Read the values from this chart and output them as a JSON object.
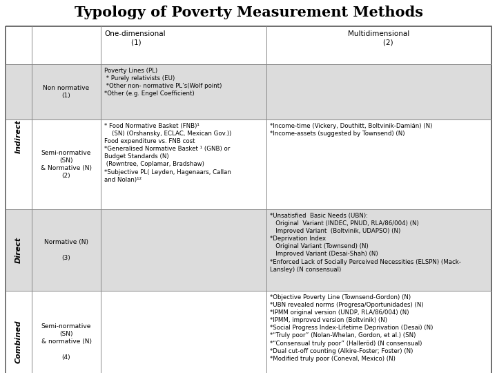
{
  "title": "Typology of Poverty Measurement Methods",
  "title_fontsize": 15,
  "background_color": "#ffffff",
  "table_bg_light": "#dcdcdc",
  "table_bg_white": "#ffffff",
  "col_headers": [
    "One-dimensional\n            (1)",
    "Multidimensional\n        (2)"
  ],
  "row_headers": [
    "Non normative\n(1)",
    "Semi-normative\n(SN)\n& Normative (N)\n(2)",
    "Normative (N)\n\n(3)",
    "Semi-normative\n(SN)\n& normative (N)\n\n(4)"
  ],
  "cell_data": [
    [
      "Poverty Lines (PL)\n * Purely relativists (EU)\n *Other non- normative PL’s(Wolf point)\n*Other (e.g. Engel Coefficient)",
      ""
    ],
    [
      "* Food Normative Basket (FNB)¹\n    (SN) (Orshansky, ECLAC, Mexican Gov.))\nFood expenditure vs. FNB cost\n*Generalised Normative Basket ¹ (GNB) or\nBudget Standards (N)\n (Rowntree, Coplamar, Bradshaw)\n*Subjective PL( Leyden, Hagenaars, Callan\nand Nolan)¹²",
      "*Income-time (Vickery, Douthitt, Boltvinik-Damián) (N)\n*Income-assets (suggested by Townsend) (N)"
    ],
    [
      "",
      "*Unsatisfied  Basic Needs (UBN):\n   Original  Variant (INDEC, PNUD, RLA/86/004) (N)\n   Improved Variant  (Boltvinik, UDAPSO) (N)\n*Deprivation Index\n   Original Variant (Townsend) (N)\n   Improved Variant (Desai-Shah) (N)\n*Enforced Lack of Socially Perceived Necessities (ELSPN) (Mack-\nLansley) (N consensual)"
    ],
    [
      "",
      "*Objective Poverty Line (Townsend-Gordon) (N)\n*UBN revealed norms (Progresa/Oportunidades) (N)\n*IPMM original version (UNDP, RLA/86/004) (N)\n*IPMM, improved version (Boltvinik) (N)\n*Social Progress Index-Lifetime Deprivation (Desai) (N)\n*“Truly poor” (Nolan-Whelan, Gordon, et al.) (SN)\n*“Consensual truly poor” (Halleröd) (N consensual)\n*Dual cut-off counting (Alkire-Foster; Foster) (N)\n*Modified truly poor (Coneval, Mexico) (N)"
    ]
  ],
  "group_labels": [
    "Indirect",
    "Direct",
    "Combined"
  ],
  "group_label_fontsize": 8,
  "header_fontsize": 7.5,
  "cell_fontsize": 6.2,
  "row_header_fontsize": 6.5
}
